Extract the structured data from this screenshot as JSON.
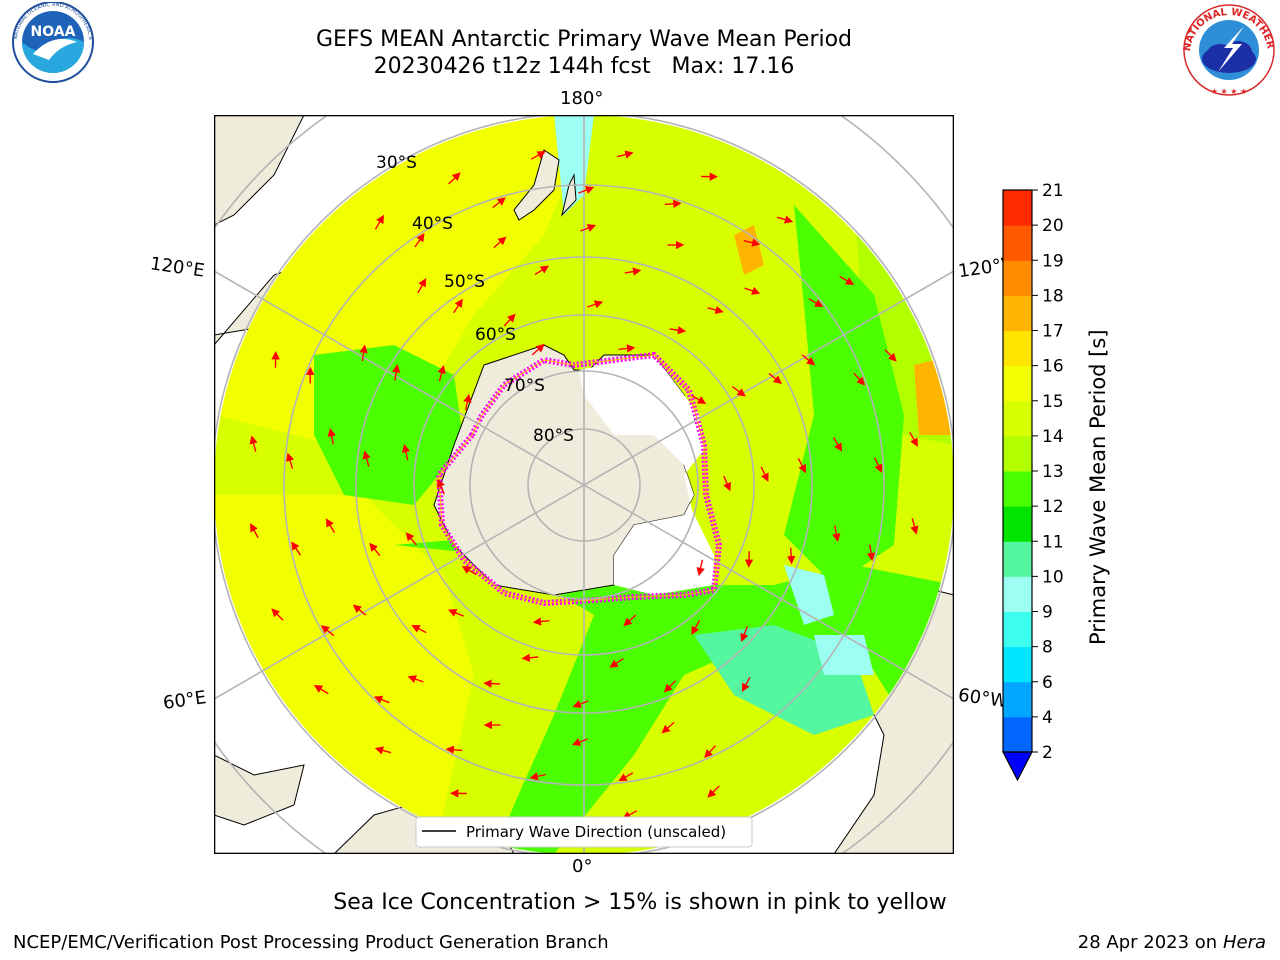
{
  "header": {
    "title_line1": "GEFS MEAN Antarctic Primary Wave Mean Period",
    "title_line2": "20230426 t12z 144h fcst   Max: 17.16",
    "left_logo_text": "NOAA",
    "left_logo_ring": "NATIONAL OCEANIC AND ATMOSPHERIC ADMINISTRATION · U.S. DEPARTMENT OF COMMERCE",
    "right_logo_text": "NATIONAL WEATHER SERVICE"
  },
  "map": {
    "projection": "south-polar-stereographic",
    "lon_labels": {
      "top": "180°",
      "bottom": "0°",
      "upper_left": "120°E",
      "upper_right": "120°W",
      "lower_left": "60°E",
      "lower_right": "60°W"
    },
    "lat_labels": [
      "30°S",
      "40°S",
      "50°S",
      "60°S",
      "70°S",
      "80°S"
    ],
    "legend_text": "Primary Wave Direction (unscaled)",
    "arrow_color": "#ff0000",
    "land_color": "#efecdc",
    "ocean_colors": {
      "period_11_12": "#4cff00",
      "period_12_13": "#b2ff00",
      "period_13_14": "#d8ff00",
      "period_14_15": "#f2ff00",
      "period_15_16": "#ffe400",
      "period_16_17": "#ffb400",
      "period_9_10": "#54f7a0",
      "period_8_9": "#9cfff2"
    },
    "ice_edge_colors": [
      "#ff00ff",
      "#ff77ff",
      "#ffb400"
    ]
  },
  "colorbar": {
    "label": "Primary Wave Mean Period [s]",
    "ticks": [
      "2",
      "4",
      "6",
      "8",
      "9",
      "10",
      "11",
      "12",
      "13",
      "14",
      "15",
      "16",
      "17",
      "18",
      "19",
      "20",
      "21"
    ],
    "colors": [
      "#0066ff",
      "#00a6ff",
      "#00e5ff",
      "#3cfff0",
      "#9cfff2",
      "#54f7a0",
      "#00e400",
      "#4cff00",
      "#b2ff00",
      "#d8ff00",
      "#f2ff00",
      "#ffe400",
      "#ffb400",
      "#ff8c00",
      "#ff5a00",
      "#ff2a00"
    ],
    "extend_color": "#0000ff"
  },
  "footer": {
    "note": "Sea Ice Concentration > 15% is shown in pink to yellow",
    "left": "NCEP/EMC/Verification Post Processing Product Generation Branch",
    "right_date": "28 Apr 2023 on ",
    "right_host": "Hera"
  }
}
